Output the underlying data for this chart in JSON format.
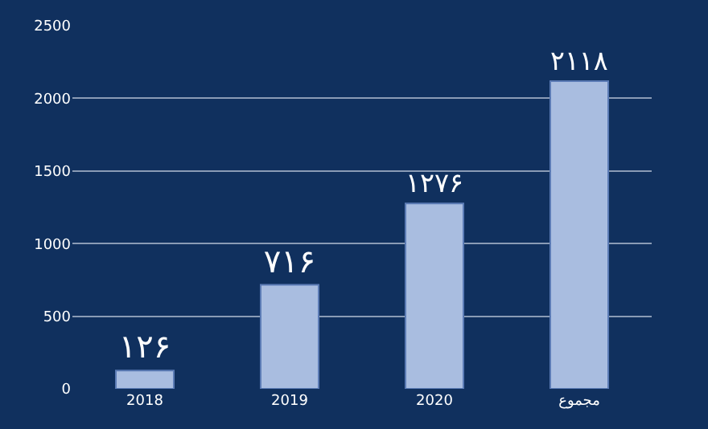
{
  "chart_data": {
    "type": "bar",
    "categories": [
      "2018",
      "2019",
      "2020",
      "مجموع"
    ],
    "values": [
      126,
      716,
      1276,
      2118
    ],
    "value_labels": [
      "۱۲۶",
      "۷۱۶",
      "۱۲۷۶",
      "۲۱۱۸"
    ],
    "color": "#a9bde0",
    "ylim": [
      0,
      2500
    ],
    "yticks": [
      0,
      500,
      1000,
      1500,
      2000,
      2500
    ],
    "grid": "y"
  }
}
